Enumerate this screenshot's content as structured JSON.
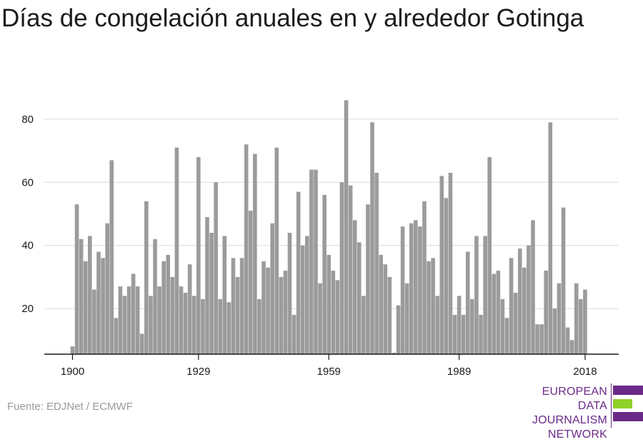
{
  "title": "Días de congelación anuales en y alrededor Gotinga",
  "source": "Fuente: EDJNet / ECMWF",
  "logo": {
    "line1": "EUROPEAN",
    "line2": "DATA JOURNALISM",
    "line3": "NETWORK"
  },
  "colors": {
    "bar": "#9b9b9b",
    "grid": "#d9d9d9",
    "axis": "#1b1b1b",
    "logo_purple": "#6b2a88",
    "logo_green": "#8fd12a"
  },
  "chart_data": {
    "type": "bar",
    "title": "Días de congelación anuales en y alrededor Gotinga",
    "xlabel": "",
    "ylabel": "",
    "x_ticks": [
      "1900",
      "1929",
      "1959",
      "1989",
      "2018"
    ],
    "y_ticks": [
      20,
      40,
      60,
      80
    ],
    "ylim": [
      5,
      90
    ],
    "grid": true,
    "x": [
      1900,
      1901,
      1902,
      1903,
      1904,
      1905,
      1906,
      1907,
      1908,
      1909,
      1910,
      1911,
      1912,
      1913,
      1914,
      1915,
      1916,
      1917,
      1918,
      1919,
      1920,
      1921,
      1922,
      1923,
      1924,
      1925,
      1926,
      1927,
      1928,
      1929,
      1930,
      1931,
      1932,
      1933,
      1934,
      1935,
      1936,
      1937,
      1938,
      1939,
      1940,
      1941,
      1942,
      1943,
      1944,
      1945,
      1946,
      1947,
      1948,
      1949,
      1950,
      1951,
      1952,
      1953,
      1954,
      1955,
      1956,
      1957,
      1958,
      1959,
      1960,
      1961,
      1962,
      1963,
      1964,
      1965,
      1966,
      1967,
      1968,
      1969,
      1970,
      1971,
      1972,
      1973,
      1974,
      1975,
      1976,
      1977,
      1978,
      1979,
      1980,
      1981,
      1982,
      1983,
      1984,
      1985,
      1986,
      1987,
      1988,
      1989,
      1990,
      1991,
      1992,
      1993,
      1994,
      1995,
      1996,
      1997,
      1998,
      1999,
      2000,
      2001,
      2002,
      2003,
      2004,
      2005,
      2006,
      2007,
      2008,
      2009,
      2010,
      2011,
      2012,
      2013,
      2014,
      2015,
      2016,
      2017,
      2018
    ],
    "values": [
      8,
      53,
      42,
      35,
      43,
      26,
      38,
      36,
      47,
      67,
      17,
      27,
      24,
      27,
      31,
      27,
      12,
      54,
      24,
      42,
      27,
      35,
      37,
      30,
      71,
      27,
      25,
      34,
      24,
      68,
      23,
      49,
      44,
      60,
      23,
      43,
      22,
      36,
      30,
      36,
      72,
      51,
      69,
      23,
      35,
      33,
      47,
      71,
      30,
      32,
      44,
      18,
      57,
      40,
      43,
      64,
      64,
      28,
      56,
      37,
      32,
      29,
      60,
      86,
      59,
      48,
      41,
      24,
      53,
      79,
      63,
      37,
      34,
      30,
      6,
      21,
      46,
      28,
      47,
      48,
      46,
      54,
      35,
      36,
      24,
      62,
      55,
      63,
      18,
      24,
      18,
      38,
      23,
      43,
      18,
      43,
      68,
      31,
      32,
      23,
      17,
      36,
      25,
      39,
      33,
      40,
      48,
      15,
      15,
      32,
      79,
      20,
      28,
      52,
      14,
      10,
      28,
      23,
      26
    ]
  }
}
